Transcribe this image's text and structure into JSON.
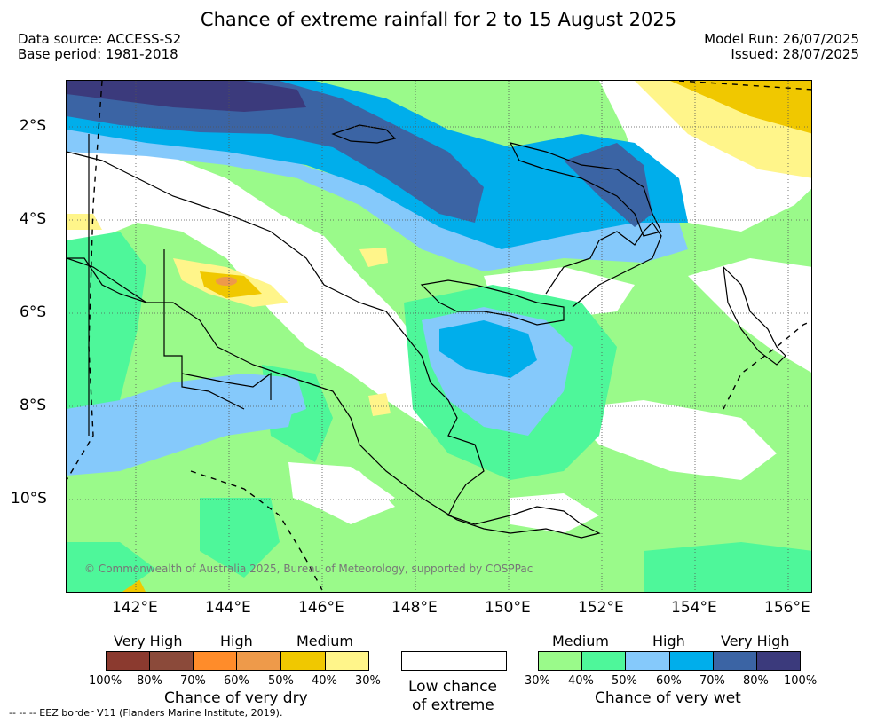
{
  "title": "Chance of extreme rainfall for 2 to 15 August 2025",
  "meta": {
    "data_source": "Data source: ACCESS-S2",
    "base_period": "Base period: 1981-2018",
    "model_run": "Model Run: 26/07/2025",
    "issued": "Issued: 28/07/2025"
  },
  "axes": {
    "lat_labels": [
      "2°S",
      "4°S",
      "6°S",
      "8°S",
      "10°S"
    ],
    "lon_labels": [
      "142°E",
      "144°E",
      "146°E",
      "148°E",
      "150°E",
      "152°E",
      "154°E",
      "156°E"
    ]
  },
  "copyright": "© Commonwealth of Australia 2025, Bureau of Meteorology, supported by COSPPac",
  "legend": {
    "dry": {
      "levels": [
        "Very High",
        "High",
        "Medium"
      ],
      "percents": [
        "100%",
        "80%",
        "70%",
        "60%",
        "50%",
        "40%",
        "30%"
      ],
      "colors": [
        "#8b3a2f",
        "#8b4a3a",
        "#ff8c2a",
        "#ee9a4a",
        "#f0c800",
        "#fff58a"
      ],
      "caption": "Chance of very dry"
    },
    "neutral": {
      "caption_line1": "Low chance",
      "caption_line2": "of extreme",
      "color": "#ffffff"
    },
    "wet": {
      "levels": [
        "Medium",
        "High",
        "Very High"
      ],
      "percents": [
        "30%",
        "40%",
        "50%",
        "60%",
        "70%",
        "80%",
        "100%"
      ],
      "colors": [
        "#9afa8a",
        "#4ef79a",
        "#85c9fb",
        "#00aeeb",
        "#3b64a4",
        "#3b3a7c"
      ],
      "caption": "Chance of very wet"
    }
  },
  "eez_note": "-- -- -- EEZ border V11 (Flanders Marine Institute, 2019)."
}
